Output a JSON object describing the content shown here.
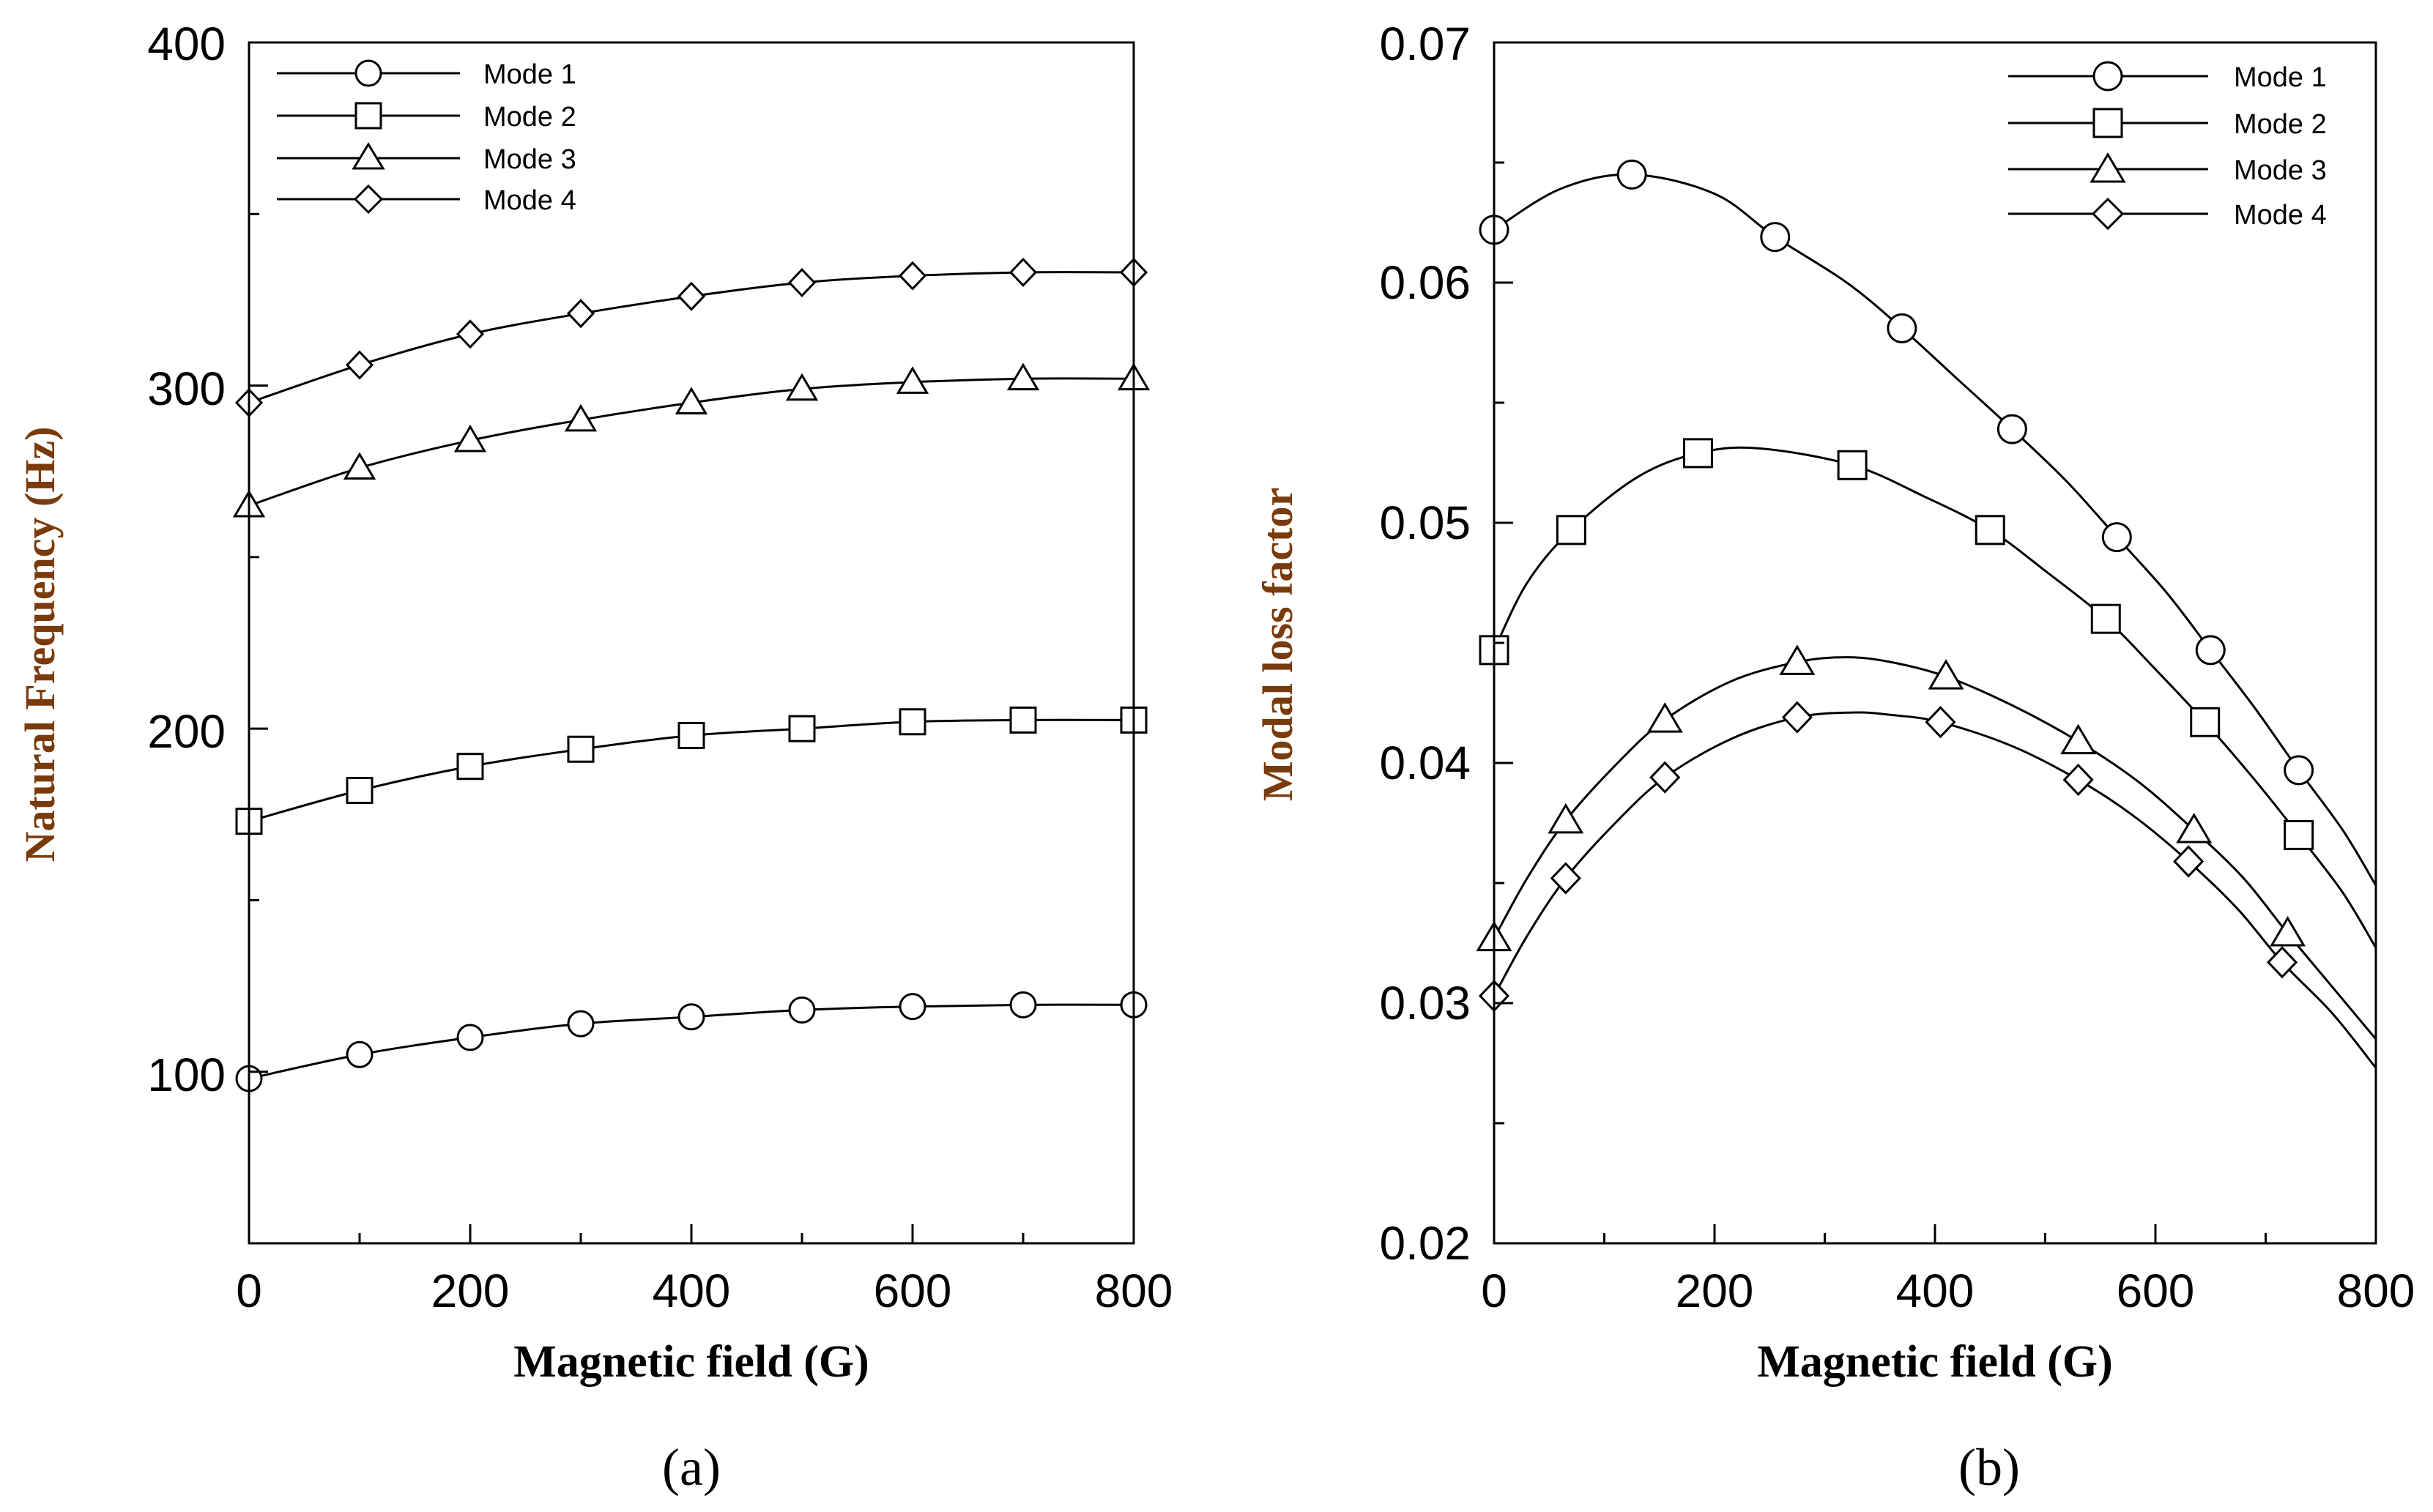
{
  "chart_data": [
    {
      "panel_label": "(a)",
      "type": "line",
      "title": "",
      "xlabel": "Magnetic field (G)",
      "ylabel": "Natural Frequency (Hz)",
      "xlim": [
        0,
        800
      ],
      "ylim": [
        50,
        400
      ],
      "xticks": [
        0,
        200,
        400,
        600,
        800
      ],
      "yticks": [
        100,
        200,
        300,
        400
      ],
      "legend_position": "top-left",
      "x": [
        0,
        100,
        200,
        300,
        400,
        500,
        600,
        700,
        800
      ],
      "series": [
        {
          "name": "Mode 1",
          "marker": "circle",
          "values": [
            98,
            105,
            110,
            114,
            116,
            118,
            119,
            119.5,
            119.5
          ]
        },
        {
          "name": "Mode 2",
          "marker": "square",
          "values": [
            173,
            182,
            189,
            194,
            198,
            200,
            202,
            202.5,
            202.5
          ]
        },
        {
          "name": "Mode 3",
          "marker": "triangle",
          "values": [
            265,
            276,
            284,
            290,
            295,
            299,
            301,
            302,
            302
          ]
        },
        {
          "name": "Mode 4",
          "marker": "diamond",
          "values": [
            295,
            306,
            315,
            321,
            326,
            330,
            332,
            333,
            333
          ]
        }
      ]
    },
    {
      "panel_label": "(b)",
      "type": "line",
      "title": "",
      "xlabel": "Magnetic field (G)",
      "ylabel": "Modal loss factor",
      "xlim": [
        0,
        800
      ],
      "ylim": [
        0.02,
        0.07
      ],
      "xticks": [
        0,
        200,
        400,
        600,
        800
      ],
      "yticks": [
        0.02,
        0.03,
        0.04,
        0.05,
        0.06,
        0.07
      ],
      "legend_position": "top-right",
      "series": [
        {
          "name": "Mode 1",
          "marker": "circle",
          "x": [
            0,
            125,
            255,
            370,
            470,
            565,
            650,
            730
          ],
          "values": [
            0.0622,
            0.0645,
            0.0619,
            0.0581,
            0.0539,
            0.0494,
            0.0447,
            0.0397
          ],
          "curve": [
            [
              0,
              0.0622
            ],
            [
              60,
              0.0639
            ],
            [
              125,
              0.0645
            ],
            [
              200,
              0.0637
            ],
            [
              255,
              0.0619
            ],
            [
              320,
              0.06
            ],
            [
              370,
              0.0581
            ],
            [
              420,
              0.056
            ],
            [
              470,
              0.0539
            ],
            [
              520,
              0.0517
            ],
            [
              565,
              0.0494
            ],
            [
              610,
              0.0471
            ],
            [
              650,
              0.0447
            ],
            [
              690,
              0.0423
            ],
            [
              730,
              0.0397
            ],
            [
              770,
              0.0372
            ],
            [
              800,
              0.0349
            ]
          ]
        },
        {
          "name": "Mode 2",
          "marker": "square",
          "x": [
            0,
            70,
            185,
            325,
            450,
            555,
            645,
            730
          ],
          "values": [
            0.0447,
            0.0497,
            0.0529,
            0.0524,
            0.0497,
            0.046,
            0.0417,
            0.037
          ],
          "curve": [
            [
              0,
              0.0447
            ],
            [
              30,
              0.0475
            ],
            [
              70,
              0.0497
            ],
            [
              130,
              0.0519
            ],
            [
              185,
              0.0529
            ],
            [
              240,
              0.0531
            ],
            [
              325,
              0.0524
            ],
            [
              390,
              0.0511
            ],
            [
              450,
              0.0497
            ],
            [
              500,
              0.048
            ],
            [
              555,
              0.046
            ],
            [
              600,
              0.0439
            ],
            [
              645,
              0.0417
            ],
            [
              690,
              0.0393
            ],
            [
              730,
              0.037
            ],
            [
              770,
              0.0346
            ],
            [
              800,
              0.0323
            ]
          ]
        },
        {
          "name": "Mode 3",
          "marker": "triangle",
          "x": [
            0,
            65,
            155,
            275,
            410,
            530,
            635,
            720
          ],
          "values": [
            0.0327,
            0.0376,
            0.0418,
            0.0442,
            0.0436,
            0.0409,
            0.0372,
            0.0329
          ],
          "curve": [
            [
              0,
              0.0327
            ],
            [
              30,
              0.0352
            ],
            [
              65,
              0.0376
            ],
            [
              110,
              0.0399
            ],
            [
              155,
              0.0418
            ],
            [
              215,
              0.0434
            ],
            [
              275,
              0.0442
            ],
            [
              320,
              0.0444
            ],
            [
              360,
              0.0442
            ],
            [
              410,
              0.0436
            ],
            [
              470,
              0.0424
            ],
            [
              530,
              0.0409
            ],
            [
              585,
              0.0392
            ],
            [
              635,
              0.0372
            ],
            [
              680,
              0.0352
            ],
            [
              720,
              0.0329
            ],
            [
              760,
              0.0307
            ],
            [
              800,
              0.0285
            ]
          ]
        },
        {
          "name": "Mode 4",
          "marker": "diamond",
          "x": [
            0,
            65,
            155,
            275,
            405,
            530,
            630,
            715
          ],
          "values": [
            0.0303,
            0.0352,
            0.0394,
            0.0419,
            0.0417,
            0.0393,
            0.0359,
            0.0317
          ],
          "curve": [
            [
              0,
              0.0303
            ],
            [
              30,
              0.0328
            ],
            [
              65,
              0.0352
            ],
            [
              110,
              0.0375
            ],
            [
              155,
              0.0394
            ],
            [
              215,
              0.041
            ],
            [
              275,
              0.0419
            ],
            [
              325,
              0.0421
            ],
            [
              360,
              0.042
            ],
            [
              405,
              0.0417
            ],
            [
              470,
              0.0407
            ],
            [
              530,
              0.0393
            ],
            [
              580,
              0.0378
            ],
            [
              630,
              0.0359
            ],
            [
              675,
              0.0339
            ],
            [
              715,
              0.0317
            ],
            [
              760,
              0.0296
            ],
            [
              800,
              0.0273
            ]
          ]
        }
      ]
    }
  ]
}
